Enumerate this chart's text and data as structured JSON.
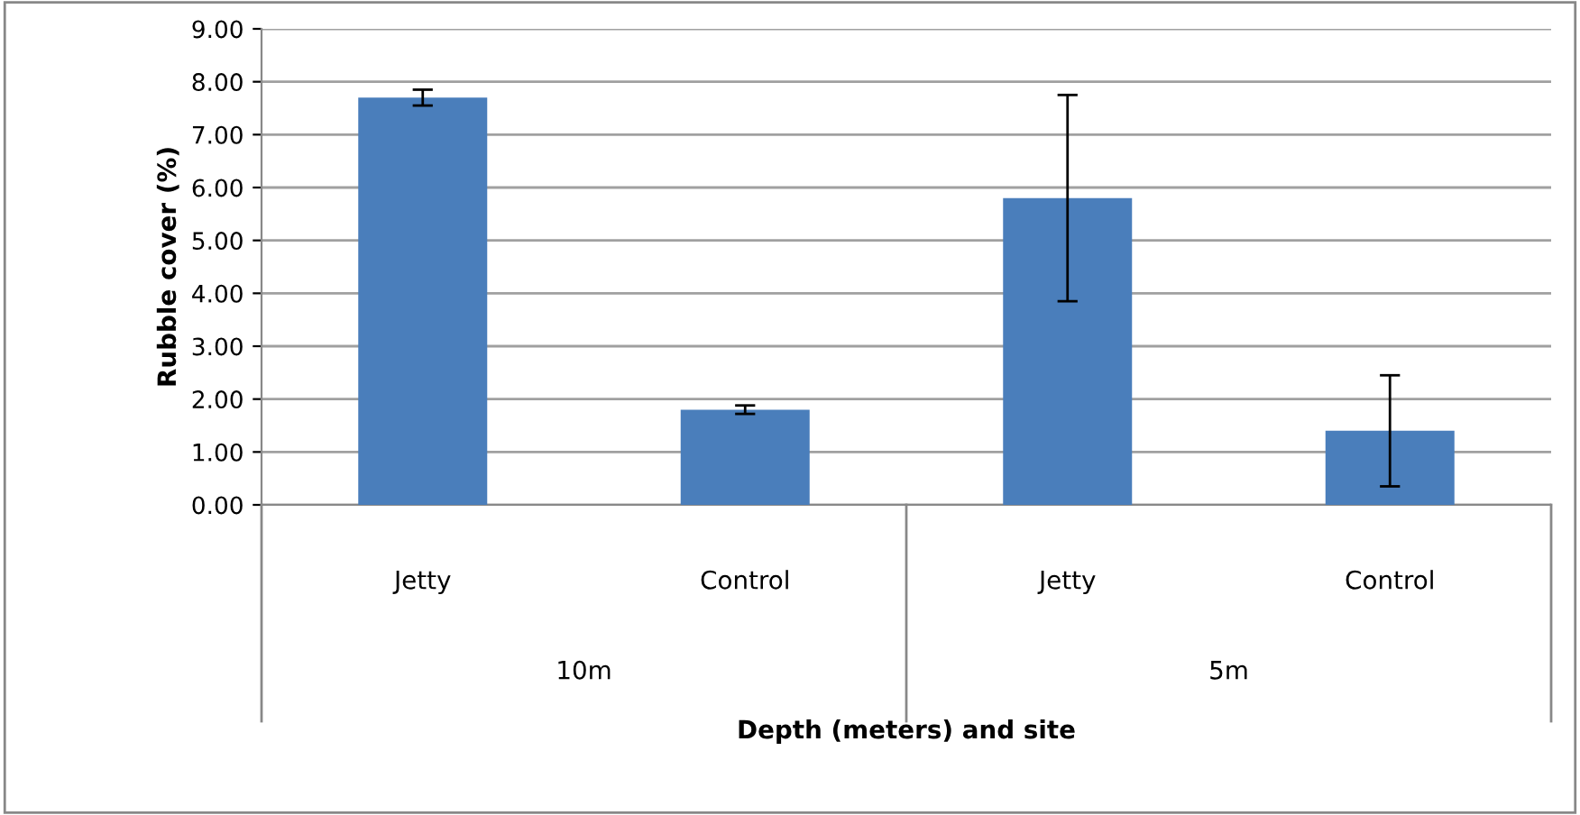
{
  "chart_data": {
    "type": "bar",
    "categories": [
      "Jetty",
      "Control",
      "Jetty",
      "Control"
    ],
    "values": [
      7.7,
      1.8,
      5.8,
      1.4
    ],
    "errors": [
      0.15,
      0.08,
      1.95,
      1.05
    ],
    "color": "#4a7ebb",
    "ylabel": "Rubble cover (%)",
    "xlabel": "Depth (meters) and site",
    "annotations": [
      "10m",
      "5m"
    ],
    "ylim": [
      0,
      9
    ],
    "yticks": [
      {
        "value": 0,
        "label": "0.00"
      },
      {
        "value": 1,
        "label": "1.00"
      },
      {
        "value": 2,
        "label": "2.00"
      },
      {
        "value": 3,
        "label": "3.00"
      },
      {
        "value": 4,
        "label": "4.00"
      },
      {
        "value": 5,
        "label": "5.00"
      },
      {
        "value": 6,
        "label": "6.00"
      },
      {
        "value": 7,
        "label": "7.00"
      },
      {
        "value": 8,
        "label": "8.00"
      },
      {
        "value": 9,
        "label": "9.00"
      }
    ],
    "grid": "y"
  }
}
